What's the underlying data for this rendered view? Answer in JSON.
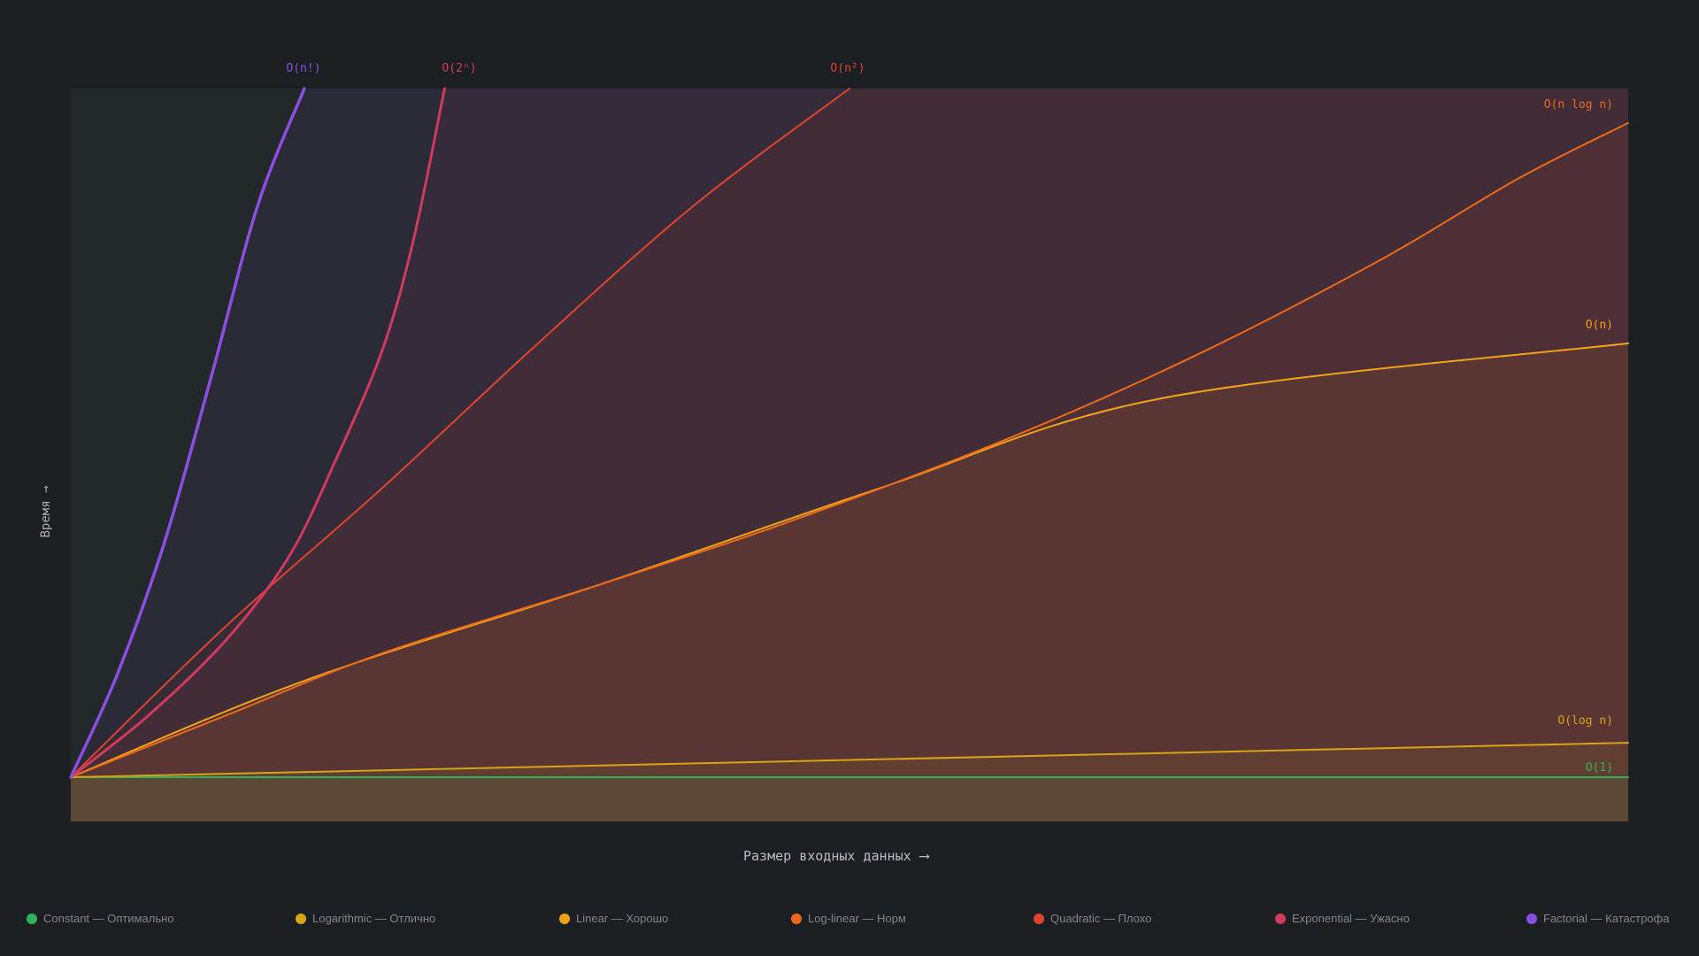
{
  "chart_data": {
    "type": "line",
    "xlabel": "Размер входных данных",
    "ylabel": "Время",
    "xlim": [
      0,
      100
    ],
    "ylim": [
      0,
      100
    ],
    "grid": false,
    "legend_position": "bottom",
    "series": [
      {
        "name": "O(1)",
        "legend": "Constant — Оптимально",
        "color": "#2fb35a",
        "kind": "constant"
      },
      {
        "name": "O(log n)",
        "legend": "Logarithmic — Отлично",
        "color": "#d9a316",
        "kind": "log"
      },
      {
        "name": "O(n)",
        "legend": "Linear — Хорошо",
        "color": "#f0a21a",
        "kind": "linear"
      },
      {
        "name": "O(n log n)",
        "legend": "Log-linear — Норм",
        "color": "#ec6a1a",
        "kind": "nlogn"
      },
      {
        "name": "O(n²)",
        "legend": "Quadratic — Плохо",
        "color": "#e0442e",
        "kind": "quadratic"
      },
      {
        "name": "O(2ⁿ)",
        "legend": "Exponential — Ужасно",
        "color": "#d03a5e",
        "kind": "exponential"
      },
      {
        "name": "O(n!)",
        "legend": "Factorial — Катастрофа",
        "color": "#8a4fe0",
        "kind": "factorial"
      }
    ],
    "values": {
      "constant": [
        [
          0,
          0
        ],
        [
          100,
          0
        ]
      ],
      "log": [
        [
          0,
          0
        ],
        [
          100,
          5
        ]
      ],
      "linear": [
        [
          0,
          0
        ],
        [
          15,
          14
        ],
        [
          34,
          28
        ],
        [
          52,
          42
        ],
        [
          70,
          55
        ],
        [
          100,
          63
        ]
      ],
      "nlogn": [
        [
          0,
          0
        ],
        [
          10,
          9
        ],
        [
          20,
          18
        ],
        [
          34,
          28
        ],
        [
          46,
          37
        ],
        [
          60,
          49
        ],
        [
          72,
          61
        ],
        [
          84,
          75
        ],
        [
          93,
          87
        ],
        [
          100,
          95
        ]
      ],
      "quadratic": [
        [
          0,
          0
        ],
        [
          10,
          22
        ],
        [
          20,
          42
        ],
        [
          30,
          63
        ],
        [
          40,
          83
        ],
        [
          50,
          100
        ]
      ],
      "exponential": [
        [
          0,
          0
        ],
        [
          5,
          9
        ],
        [
          10,
          20
        ],
        [
          14,
          32
        ],
        [
          17,
          46
        ],
        [
          20,
          62
        ],
        [
          22,
          78
        ],
        [
          24,
          100
        ]
      ],
      "factorial": [
        [
          0,
          0
        ],
        [
          3,
          15
        ],
        [
          6,
          34
        ],
        [
          9,
          58
        ],
        [
          12,
          83
        ],
        [
          15,
          100
        ]
      ]
    }
  }
}
